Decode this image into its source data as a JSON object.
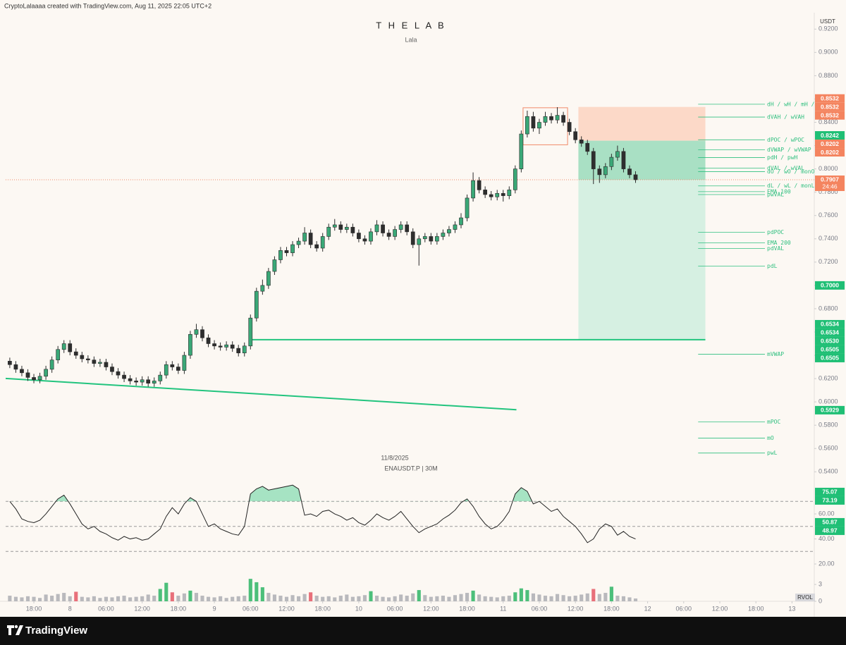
{
  "header": "CryptoLalaaaa created with TradingView.com, Aug 11, 2025 22:05 UTC+2",
  "footer": "TradingView",
  "chart_data": [
    {
      "type": "candlestick",
      "title": "T H E L A B",
      "subtitle": "Lala",
      "date_label": "11/8/2025",
      "symbol_label": "ENAUSDT.P | 30M",
      "currency": "USDT",
      "up_color": "#3aa877",
      "down_color": "#2e2e2e",
      "xlim": [
        -0.69,
        133.7
      ],
      "ylim": [
        0.5305,
        0.9341
      ],
      "xticks": [
        {
          "value": 4,
          "label": "18:00"
        },
        {
          "value": 10,
          "label": "8"
        },
        {
          "value": 16,
          "label": "06:00"
        },
        {
          "value": 22,
          "label": "12:00"
        },
        {
          "value": 28,
          "label": "18:00"
        },
        {
          "value": 34,
          "label": "9"
        },
        {
          "value": 40,
          "label": "06:00"
        },
        {
          "value": 46,
          "label": "12:00"
        },
        {
          "value": 52,
          "label": "18:00"
        },
        {
          "value": 58,
          "label": "10"
        },
        {
          "value": 64,
          "label": "06:00"
        },
        {
          "value": 70,
          "label": "12:00"
        },
        {
          "value": 76,
          "label": "18:00"
        },
        {
          "value": 82,
          "label": "11"
        },
        {
          "value": 88,
          "label": "06:00"
        },
        {
          "value": 94,
          "label": "12:00"
        },
        {
          "value": 100,
          "label": "18:00"
        },
        {
          "value": 106,
          "label": "12"
        },
        {
          "value": 112,
          "label": "06:00"
        },
        {
          "value": 118,
          "label": "12:00"
        },
        {
          "value": 124,
          "label": "18:00"
        },
        {
          "value": 130,
          "label": "13"
        }
      ],
      "yticks": [
        {
          "value": 0.92,
          "label": "0.9200"
        },
        {
          "value": 0.9,
          "label": "0.9000"
        },
        {
          "value": 0.88,
          "label": "0.8800"
        },
        {
          "value": 0.86,
          "label": "0.8600"
        },
        {
          "value": 0.84,
          "label": "0.8400"
        },
        {
          "value": 0.82,
          "label": "0.8200"
        },
        {
          "value": 0.8,
          "label": "0.8000"
        },
        {
          "value": 0.78,
          "label": "0.7800"
        },
        {
          "value": 0.76,
          "label": "0.7600"
        },
        {
          "value": 0.74,
          "label": "0.7400"
        },
        {
          "value": 0.72,
          "label": "0.7200"
        },
        {
          "value": 0.7,
          "label": "0.7000"
        },
        {
          "value": 0.68,
          "label": "0.6800"
        },
        {
          "value": 0.66,
          "label": "0.6600"
        },
        {
          "value": 0.64,
          "label": "0.6400"
        },
        {
          "value": 0.62,
          "label": "0.6200"
        },
        {
          "value": 0.6,
          "label": "0.6000"
        },
        {
          "value": 0.58,
          "label": "0.5800"
        },
        {
          "value": 0.56,
          "label": "0.5600"
        },
        {
          "value": 0.54,
          "label": "0.5400"
        }
      ],
      "open": [
        0.635,
        0.632,
        0.628,
        0.625,
        0.621,
        0.619,
        0.622,
        0.628,
        0.636,
        0.645,
        0.65,
        0.643,
        0.64,
        0.637,
        0.636,
        0.633,
        0.634,
        0.63,
        0.626,
        0.623,
        0.62,
        0.618,
        0.617,
        0.619,
        0.616,
        0.618,
        0.623,
        0.632,
        0.63,
        0.627,
        0.64,
        0.658,
        0.662,
        0.655,
        0.65,
        0.648,
        0.647,
        0.649,
        0.646,
        0.642,
        0.648,
        0.672,
        0.695,
        0.7,
        0.712,
        0.722,
        0.73,
        0.728,
        0.735,
        0.738,
        0.745,
        0.735,
        0.732,
        0.742,
        0.75,
        0.752,
        0.748,
        0.75,
        0.745,
        0.74,
        0.738,
        0.746,
        0.752,
        0.745,
        0.742,
        0.748,
        0.752,
        0.746,
        0.735,
        0.74,
        0.742,
        0.738,
        0.742,
        0.745,
        0.748,
        0.752,
        0.758,
        0.775,
        0.79,
        0.782,
        0.778,
        0.776,
        0.779,
        0.777,
        0.782,
        0.8,
        0.83,
        0.845,
        0.835,
        0.84,
        0.845,
        0.842,
        0.846,
        0.84,
        0.832,
        0.825,
        0.822,
        0.815,
        0.8,
        0.795,
        0.802,
        0.81,
        0.815,
        0.8,
        0.795
      ],
      "high": [
        0.638,
        0.635,
        0.631,
        0.628,
        0.624,
        0.625,
        0.631,
        0.639,
        0.648,
        0.653,
        0.653,
        0.646,
        0.643,
        0.64,
        0.639,
        0.637,
        0.637,
        0.633,
        0.629,
        0.626,
        0.623,
        0.621,
        0.622,
        0.622,
        0.621,
        0.626,
        0.635,
        0.635,
        0.633,
        0.643,
        0.661,
        0.667,
        0.665,
        0.658,
        0.653,
        0.651,
        0.652,
        0.652,
        0.649,
        0.651,
        0.675,
        0.698,
        0.705,
        0.715,
        0.725,
        0.733,
        0.733,
        0.738,
        0.741,
        0.75,
        0.748,
        0.738,
        0.745,
        0.753,
        0.757,
        0.755,
        0.753,
        0.753,
        0.748,
        0.743,
        0.749,
        0.756,
        0.755,
        0.748,
        0.751,
        0.755,
        0.755,
        0.749,
        0.743,
        0.745,
        0.745,
        0.745,
        0.748,
        0.751,
        0.755,
        0.762,
        0.778,
        0.797,
        0.793,
        0.785,
        0.781,
        0.782,
        0.782,
        0.785,
        0.803,
        0.833,
        0.85,
        0.849,
        0.843,
        0.849,
        0.848,
        0.853,
        0.849,
        0.843,
        0.835,
        0.828,
        0.825,
        0.818,
        0.803,
        0.805,
        0.813,
        0.82,
        0.818,
        0.803,
        0.798
      ],
      "low": [
        0.629,
        0.625,
        0.622,
        0.618,
        0.616,
        0.616,
        0.619,
        0.625,
        0.633,
        0.642,
        0.64,
        0.637,
        0.634,
        0.633,
        0.63,
        0.63,
        0.627,
        0.623,
        0.62,
        0.617,
        0.615,
        0.614,
        0.614,
        0.613,
        0.613,
        0.615,
        0.62,
        0.627,
        0.624,
        0.624,
        0.637,
        0.655,
        0.652,
        0.647,
        0.645,
        0.644,
        0.644,
        0.643,
        0.639,
        0.639,
        0.645,
        0.669,
        0.692,
        0.697,
        0.709,
        0.719,
        0.725,
        0.725,
        0.732,
        0.735,
        0.732,
        0.729,
        0.729,
        0.739,
        0.747,
        0.745,
        0.745,
        0.742,
        0.737,
        0.735,
        0.735,
        0.743,
        0.742,
        0.739,
        0.739,
        0.745,
        0.743,
        0.732,
        0.717,
        0.737,
        0.735,
        0.735,
        0.739,
        0.742,
        0.745,
        0.749,
        0.755,
        0.772,
        0.779,
        0.775,
        0.773,
        0.773,
        0.772,
        0.774,
        0.779,
        0.797,
        0.827,
        0.832,
        0.83,
        0.837,
        0.839,
        0.839,
        0.837,
        0.829,
        0.822,
        0.819,
        0.812,
        0.787,
        0.788,
        0.792,
        0.799,
        0.807,
        0.797,
        0.792,
        0.788
      ],
      "close": [
        0.632,
        0.628,
        0.625,
        0.621,
        0.619,
        0.622,
        0.628,
        0.636,
        0.645,
        0.65,
        0.643,
        0.64,
        0.637,
        0.636,
        0.633,
        0.634,
        0.63,
        0.626,
        0.623,
        0.62,
        0.618,
        0.617,
        0.619,
        0.616,
        0.618,
        0.623,
        0.632,
        0.63,
        0.627,
        0.64,
        0.658,
        0.662,
        0.655,
        0.65,
        0.648,
        0.647,
        0.649,
        0.646,
        0.642,
        0.648,
        0.672,
        0.695,
        0.7,
        0.712,
        0.722,
        0.73,
        0.728,
        0.735,
        0.738,
        0.745,
        0.735,
        0.732,
        0.742,
        0.75,
        0.752,
        0.748,
        0.75,
        0.745,
        0.74,
        0.738,
        0.746,
        0.752,
        0.745,
        0.742,
        0.748,
        0.752,
        0.746,
        0.735,
        0.74,
        0.742,
        0.738,
        0.742,
        0.745,
        0.748,
        0.752,
        0.758,
        0.775,
        0.79,
        0.782,
        0.778,
        0.776,
        0.779,
        0.777,
        0.782,
        0.8,
        0.83,
        0.845,
        0.835,
        0.84,
        0.845,
        0.842,
        0.846,
        0.84,
        0.832,
        0.825,
        0.822,
        0.815,
        0.8,
        0.795,
        0.802,
        0.81,
        0.815,
        0.8,
        0.795,
        0.7907
      ],
      "price_line_color": "#f08a6a",
      "position": {
        "start": 94.5,
        "end": 115.6,
        "stop": 0.8532,
        "entry": 0.8242,
        "target": 0.6534,
        "stop_color": "#fcd9c8",
        "target_color": "#d6f0e2",
        "open_color": "#a9e0c4"
      },
      "range_box": {
        "start": 85.3,
        "end": 92.7,
        "top": 0.8525,
        "bottom": 0.8207,
        "color": "#f08a6a"
      },
      "lines": [
        {
          "x": [
            -0.69,
            84.2
          ],
          "y": [
            0.6201,
            0.5933
          ],
          "color": "#22c47e"
        },
        {
          "x": [
            40.2,
            115.6
          ],
          "y": [
            0.6534,
            0.6534
          ],
          "color": "#22c47e"
        }
      ],
      "level_start": 114.4,
      "level_end": 125.5,
      "level_color": "#2fbf7f",
      "levels": [
        {
          "label": "dH / wH / mH /",
          "value": 0.8555
        },
        {
          "label": "dVAH / wVAH",
          "value": 0.8445
        },
        {
          "label": "dPOC / wPOC",
          "value": 0.825
        },
        {
          "label": "dVWAP / wVWAP",
          "value": 0.8165
        },
        {
          "label": "pdH / pwH",
          "value": 0.8098
        },
        {
          "label": "dVAL / wVAL",
          "value": 0.8006
        },
        {
          "label": "dO / wO / monO",
          "value": 0.7976
        },
        {
          "label": "dL / wL / monL",
          "value": 0.7854
        },
        {
          "label": "EMA 100",
          "value": 0.7805
        },
        {
          "label": "pwVAL",
          "value": 0.778
        },
        {
          "label": "pdPOC",
          "value": 0.7457
        },
        {
          "label": "EMA 200",
          "value": 0.7366
        },
        {
          "label": "pdVAL",
          "value": 0.7317
        },
        {
          "label": "pdL",
          "value": 0.7165
        },
        {
          "label": "mVWAP",
          "value": 0.6409
        },
        {
          "label": "mPOC",
          "value": 0.5829
        },
        {
          "label": "mO",
          "value": 0.5689
        },
        {
          "label": "pwL",
          "value": 0.5561
        }
      ],
      "tags": [
        {
          "value": 0.8532,
          "color": "#f4845f"
        },
        {
          "value": 0.8532,
          "color": "#f4845f"
        },
        {
          "value": 0.8532,
          "color": "#f4845f"
        },
        {
          "value": 0.8242,
          "color": "#1fbf75"
        },
        {
          "value": 0.8202,
          "color": "#f4845f"
        },
        {
          "value": 0.8202,
          "color": "#f4845f"
        },
        {
          "value": 0.7907,
          "color": "#f4845f",
          "countdown": "24:46"
        },
        {
          "value": 0.7,
          "label": "0.7000",
          "color": "#1fbf75"
        },
        {
          "value": 0.6534,
          "color": "#1fbf75"
        },
        {
          "value": 0.6534,
          "color": "#1fbf75"
        },
        {
          "value": 0.653,
          "label": "0.6530",
          "color": "#1fbf75"
        },
        {
          "value": 0.6505,
          "color": "#1fbf75"
        },
        {
          "value": 0.6505,
          "color": "#1fbf75"
        },
        {
          "value": 0.5929,
          "color": "#1fbf75"
        }
      ]
    },
    {
      "type": "line",
      "xlim": [
        -0.69,
        133.7
      ],
      "ylim": [
        14.4,
        84.8
      ],
      "color": "#222222",
      "fill_color": "#5fd19a",
      "levels": [
        70,
        50,
        30
      ],
      "yticks": [
        {
          "value": 60,
          "label": "60.00"
        },
        {
          "value": 40,
          "label": "40.00"
        },
        {
          "value": 20,
          "label": "20.00"
        }
      ],
      "values": [
        70,
        64,
        56,
        54,
        53,
        55,
        60,
        66,
        72,
        75,
        68,
        60,
        52,
        48,
        50,
        46,
        44,
        41,
        39,
        42,
        40,
        41,
        39,
        40,
        44,
        48,
        58,
        65,
        60,
        68,
        73,
        70,
        60,
        50,
        52,
        48,
        46,
        44,
        43,
        50,
        76,
        80,
        82,
        79,
        80,
        81,
        82,
        83,
        80,
        59,
        60,
        58,
        62,
        63,
        60,
        58,
        55,
        57,
        53,
        51,
        55,
        60,
        57,
        55,
        58,
        62,
        56,
        50,
        45,
        48,
        50,
        52,
        56,
        59,
        63,
        69,
        72,
        66,
        58,
        52,
        48,
        50,
        55,
        62,
        76,
        81,
        78,
        68,
        70,
        66,
        62,
        64,
        58,
        54,
        50,
        44,
        37,
        40,
        48,
        52,
        50,
        43,
        46,
        42,
        40
      ],
      "tags": [
        {
          "value": 75.07,
          "color": "#1fbf75"
        },
        {
          "value": 73.19,
          "color": "#1fbf75"
        },
        {
          "value": 50.87,
          "color": "#1fbf75"
        },
        {
          "value": 48.97,
          "color": "#1fbf75"
        }
      ]
    },
    {
      "type": "bar",
      "name": "RVOL",
      "xlim": [
        -0.69,
        133.7
      ],
      "ylim": [
        0,
        5.4
      ],
      "yticks": [
        0,
        3
      ],
      "up_color": "#4cbf7a",
      "down_color": "#e8707a",
      "neutral_color": "#b9b9bd",
      "threshold": 1.5,
      "values": [
        1.0,
        0.8,
        0.7,
        0.9,
        0.8,
        0.6,
        1.2,
        1.0,
        1.3,
        1.5,
        0.9,
        1.7,
        0.8,
        0.7,
        0.9,
        0.6,
        0.8,
        0.7,
        0.9,
        1.0,
        0.7,
        0.8,
        0.9,
        1.2,
        1.0,
        2.2,
        3.3,
        1.6,
        1.0,
        1.4,
        1.9,
        1.5,
        1.0,
        0.8,
        0.7,
        0.9,
        0.6,
        0.8,
        0.9,
        1.0,
        4.0,
        3.4,
        2.5,
        1.5,
        1.2,
        1.0,
        0.8,
        1.1,
        0.9,
        1.3,
        1.6,
        1.0,
        0.8,
        0.9,
        0.7,
        1.0,
        1.2,
        0.8,
        0.9,
        1.1,
        1.8,
        1.0,
        0.8,
        0.7,
        0.9,
        1.2,
        1.0,
        1.4,
        2.0,
        1.1,
        0.8,
        0.9,
        1.0,
        0.8,
        1.1,
        1.3,
        1.5,
        1.9,
        1.2,
        0.9,
        0.8,
        0.7,
        0.9,
        1.0,
        1.6,
        2.3,
        2.0,
        1.4,
        1.2,
        1.0,
        0.9,
        1.3,
        1.1,
        0.9,
        1.0,
        1.2,
        1.4,
        2.2,
        1.3,
        1.5,
        2.6,
        1.0,
        0.9,
        0.7,
        0.5
      ]
    }
  ]
}
